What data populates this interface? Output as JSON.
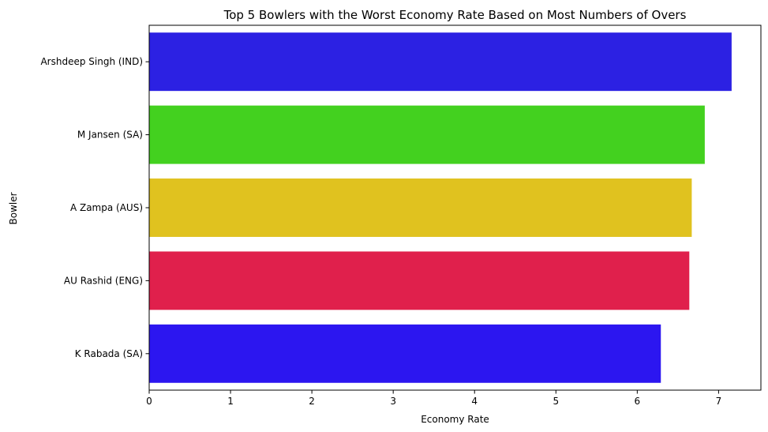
{
  "chart_data": {
    "type": "bar",
    "orientation": "horizontal",
    "title": "Top 5 Bowlers with the Worst Economy Rate Based on Most Numbers of Overs",
    "xlabel": "Economy Rate",
    "ylabel": "Bowler",
    "categories": [
      "Arshdeep Singh (IND)",
      "M Jansen (SA)",
      "A Zampa (AUS)",
      "AU Rashid (ENG)",
      "K Rabada (SA)"
    ],
    "values": [
      7.16,
      6.83,
      6.67,
      6.64,
      6.29
    ],
    "colors": [
      "#2c21e3",
      "#43d11f",
      "#e0c21f",
      "#e0204c",
      "#2c16f0"
    ],
    "xlim": [
      0,
      7.52
    ],
    "xticks": [
      "0",
      "1",
      "2",
      "3",
      "4",
      "5",
      "6",
      "7"
    ],
    "grid": false,
    "legend": "none"
  }
}
